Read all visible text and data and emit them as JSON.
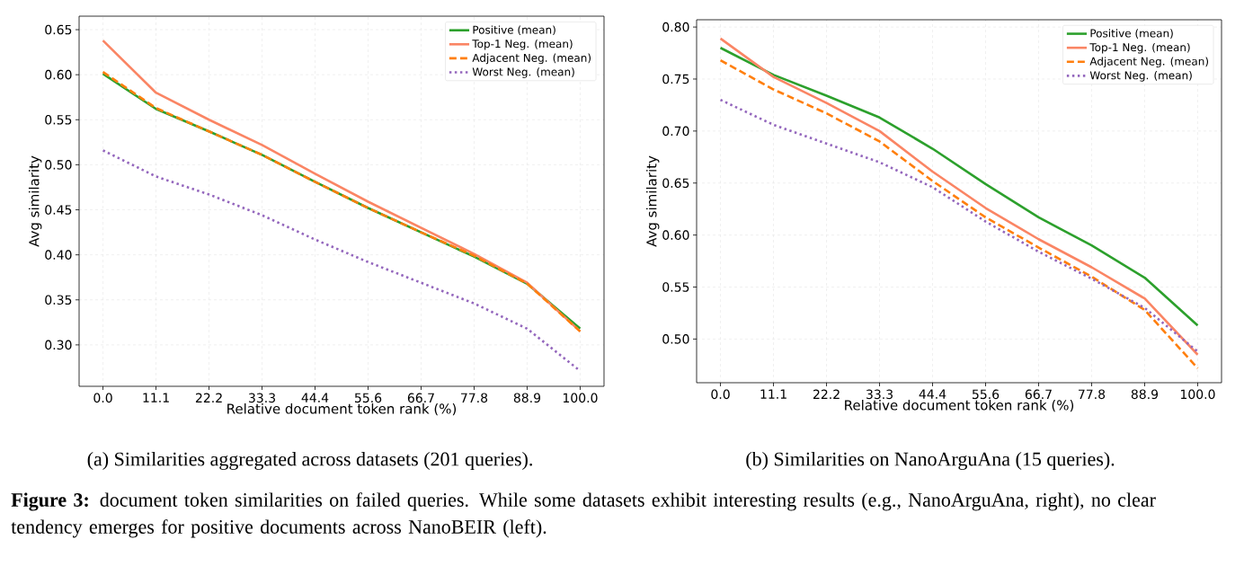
{
  "chart_data": [
    {
      "type": "line",
      "xlabel": "Relative document token rank (%)",
      "ylabel": "Avg similarity",
      "categories": [
        "0.0",
        "11.1",
        "22.2",
        "33.3",
        "44.4",
        "55.6",
        "66.7",
        "77.8",
        "88.9",
        "100.0"
      ],
      "series": [
        {
          "name": "Positive (mean)",
          "color": "#2ca02c",
          "line_style": "solid",
          "values": [
            0.601,
            0.562,
            0.537,
            0.511,
            0.481,
            0.452,
            0.425,
            0.398,
            0.368,
            0.318
          ]
        },
        {
          "name": "Top-1 Neg. (mean)",
          "color": "#fa8564",
          "line_style": "solid",
          "values": [
            0.638,
            0.58,
            0.55,
            0.522,
            0.49,
            0.459,
            0.43,
            0.401,
            0.369,
            0.315
          ]
        },
        {
          "name": "Adjacent Neg. (mean)",
          "color": "#ff7f0e",
          "line_style": "dashed",
          "values": [
            0.603,
            0.563,
            0.537,
            0.511,
            0.481,
            0.452,
            0.425,
            0.399,
            0.368,
            0.315
          ]
        },
        {
          "name": "Worst Neg. (mean)",
          "color": "#9467bd",
          "line_style": "dotted",
          "values": [
            0.516,
            0.487,
            0.467,
            0.444,
            0.417,
            0.392,
            0.369,
            0.346,
            0.318,
            0.271
          ]
        }
      ],
      "ylim": [
        0.254,
        0.665
      ],
      "yticks": [
        {
          "value": 0.3,
          "label": "0.30"
        },
        {
          "value": 0.35,
          "label": "0.35"
        },
        {
          "value": 0.4,
          "label": "0.40"
        },
        {
          "value": 0.45,
          "label": "0.45"
        },
        {
          "value": 0.5,
          "label": "0.50"
        },
        {
          "value": 0.55,
          "label": "0.55"
        },
        {
          "value": 0.6,
          "label": "0.60"
        },
        {
          "value": 0.65,
          "label": "0.65"
        }
      ],
      "grid": true,
      "legend": "top right",
      "annotations": [
        "(a) Similarities aggregated across datasets (201 queries)."
      ]
    },
    {
      "type": "line",
      "xlabel": "Relative document token rank (%)",
      "ylabel": "Avg similarity",
      "categories": [
        "0.0",
        "11.1",
        "22.2",
        "33.3",
        "44.4",
        "55.6",
        "66.7",
        "77.8",
        "88.9",
        "100.0"
      ],
      "series": [
        {
          "name": "Positive (mean)",
          "color": "#2ca02c",
          "line_style": "solid",
          "values": [
            0.78,
            0.754,
            0.734,
            0.713,
            0.683,
            0.649,
            0.617,
            0.59,
            0.559,
            0.513
          ]
        },
        {
          "name": "Top-1 Neg. (mean)",
          "color": "#fa8564",
          "line_style": "solid",
          "values": [
            0.789,
            0.752,
            0.727,
            0.7,
            0.661,
            0.626,
            0.596,
            0.569,
            0.539,
            0.485
          ]
        },
        {
          "name": "Adjacent Neg. (mean)",
          "color": "#ff7f0e",
          "line_style": "dashed",
          "values": [
            0.768,
            0.74,
            0.717,
            0.69,
            0.652,
            0.617,
            0.588,
            0.56,
            0.528,
            0.472
          ]
        },
        {
          "name": "Worst Neg. (mean)",
          "color": "#9467bd",
          "line_style": "dotted",
          "values": [
            0.73,
            0.706,
            0.688,
            0.67,
            0.646,
            0.613,
            0.584,
            0.558,
            0.53,
            0.488
          ]
        }
      ],
      "ylim": [
        0.458,
        0.807
      ],
      "yticks": [
        {
          "value": 0.5,
          "label": "0.50"
        },
        {
          "value": 0.55,
          "label": "0.55"
        },
        {
          "value": 0.6,
          "label": "0.60"
        },
        {
          "value": 0.65,
          "label": "0.65"
        },
        {
          "value": 0.7,
          "label": "0.70"
        },
        {
          "value": 0.75,
          "label": "0.75"
        },
        {
          "value": 0.8,
          "label": "0.80"
        }
      ],
      "grid": true,
      "legend": "top right",
      "annotations": [
        "(b) Similarities on NanoArguAna (15 queries).",
        "**Figure 3:** document token similarities on failed queries. While some datasets exhibit interesting results (e.g., NanoArguAna, right), no clear tendency emerges for positive documents across NanoBEIR (left)."
      ]
    }
  ]
}
